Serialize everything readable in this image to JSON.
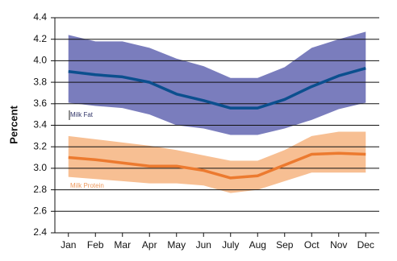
{
  "chart_data": {
    "type": "band-line",
    "y_label": "Percent",
    "categories": [
      "Jan",
      "Feb",
      "Mar",
      "Apr",
      "May",
      "Jun",
      "July",
      "Aug",
      "Sep",
      "Oct",
      "Nov",
      "Dec"
    ],
    "series": [
      {
        "name": "Milk Fat",
        "color": "#0b4f8e",
        "band_color": "#7a7dbd",
        "values": [
          3.9,
          3.87,
          3.85,
          3.8,
          3.69,
          3.63,
          3.56,
          3.56,
          3.64,
          3.76,
          3.86,
          3.93
        ],
        "upper": [
          4.24,
          4.18,
          4.18,
          4.12,
          4.02,
          3.95,
          3.84,
          3.84,
          3.94,
          4.12,
          4.2,
          4.27
        ],
        "lower": [
          3.61,
          3.58,
          3.56,
          3.5,
          3.4,
          3.37,
          3.31,
          3.31,
          3.37,
          3.45,
          3.55,
          3.61
        ]
      },
      {
        "name": "Milk Protein",
        "color": "#ec7a2f",
        "band_color": "#f7bf93",
        "values": [
          3.1,
          3.08,
          3.05,
          3.02,
          3.02,
          2.98,
          2.91,
          2.93,
          3.03,
          3.13,
          3.14,
          3.13
        ],
        "upper": [
          3.3,
          3.27,
          3.24,
          3.21,
          3.17,
          3.12,
          3.07,
          3.07,
          3.17,
          3.3,
          3.34,
          3.34
        ],
        "lower": [
          2.92,
          2.9,
          2.88,
          2.86,
          2.86,
          2.84,
          2.77,
          2.8,
          2.88,
          2.96,
          2.96,
          2.96
        ]
      }
    ],
    "ylim": [
      2.4,
      4.4
    ],
    "yticks": [
      2.4,
      2.6,
      2.8,
      {
        "value": 3,
        "label": "3.0"
      },
      3.2,
      3.4,
      3.6,
      3.8,
      {
        "value": 4,
        "label": "4.0"
      },
      4.2,
      4.4
    ],
    "grid": true
  }
}
